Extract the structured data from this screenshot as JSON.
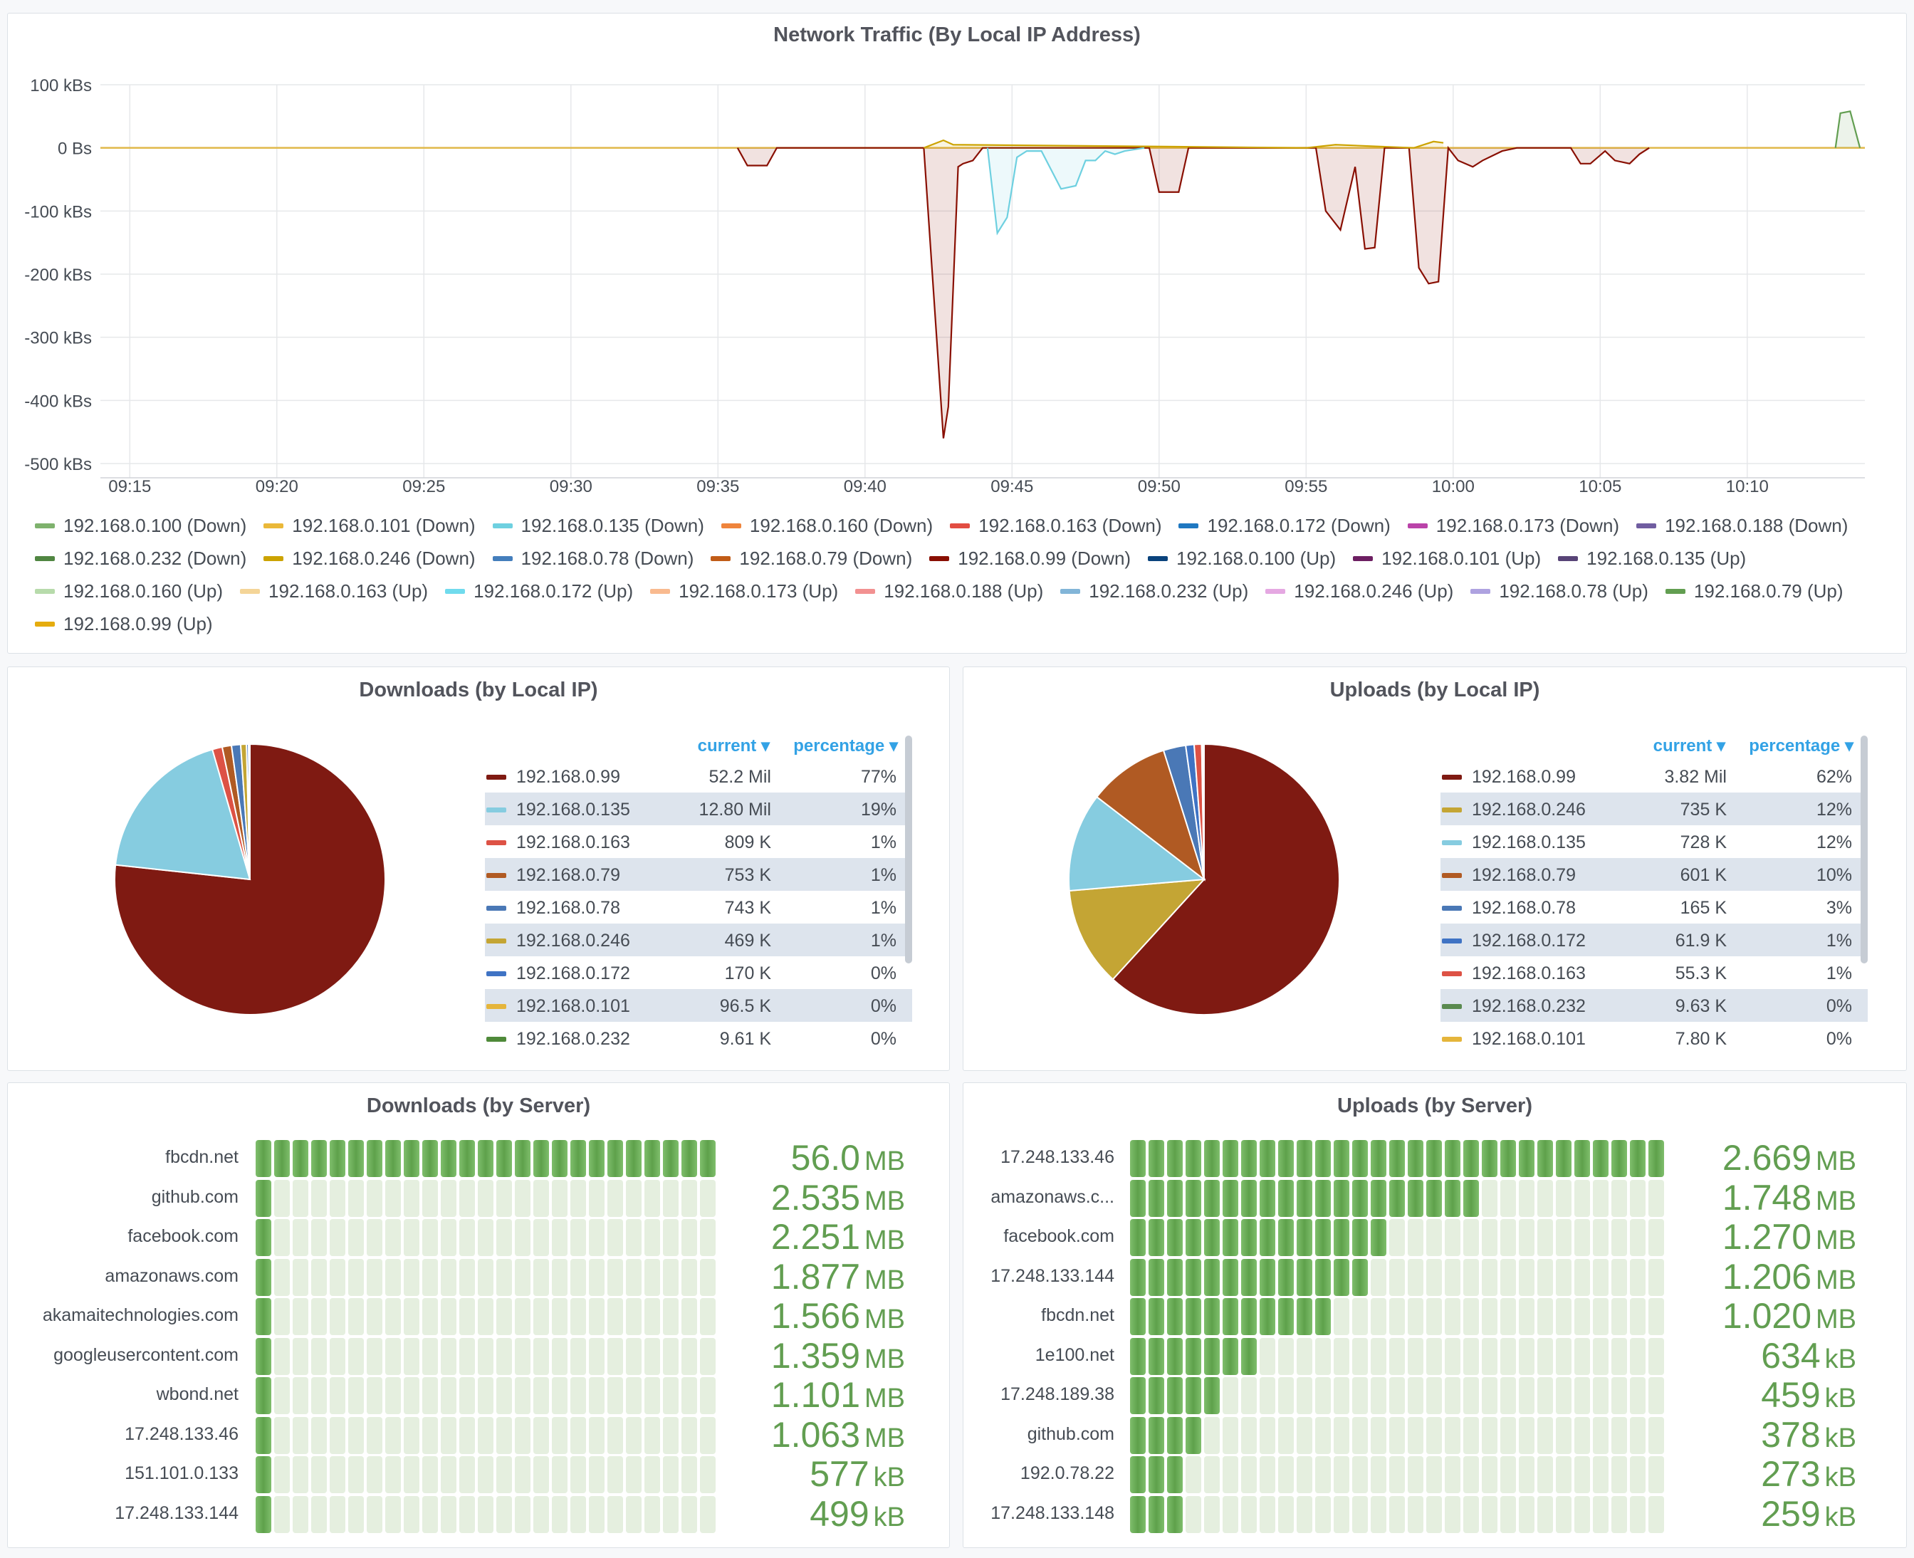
{
  "traffic": {
    "title": "Network Traffic (By Local IP Address)",
    "y_ticks": [
      "100 kBs",
      "0 Bs",
      "-100 kBs",
      "-200 kBs",
      "-300 kBs",
      "-400 kBs",
      "-500 kBs"
    ],
    "x_ticks": [
      "09:15",
      "09:20",
      "09:25",
      "09:30",
      "09:35",
      "09:40",
      "09:45",
      "09:50",
      "09:55",
      "10:00",
      "10:05",
      "10:10"
    ],
    "legend": [
      {
        "label": "192.168.0.100 (Down)",
        "color": "#7eb26d"
      },
      {
        "label": "192.168.0.101 (Down)",
        "color": "#eab839"
      },
      {
        "label": "192.168.0.135 (Down)",
        "color": "#6ed0e0"
      },
      {
        "label": "192.168.0.160 (Down)",
        "color": "#ef843c"
      },
      {
        "label": "192.168.0.163 (Down)",
        "color": "#e24d42"
      },
      {
        "label": "192.168.0.172 (Down)",
        "color": "#1f78c1"
      },
      {
        "label": "192.168.0.173 (Down)",
        "color": "#ba43a9"
      },
      {
        "label": "192.168.0.188 (Down)",
        "color": "#705da0"
      },
      {
        "label": "192.168.0.232 (Down)",
        "color": "#508642"
      },
      {
        "label": "192.168.0.246 (Down)",
        "color": "#cca300"
      },
      {
        "label": "192.168.0.78 (Down)",
        "color": "#447ebc"
      },
      {
        "label": "192.168.0.79 (Down)",
        "color": "#c15c17"
      },
      {
        "label": "192.168.0.99 (Down)",
        "color": "#890f02"
      },
      {
        "label": "192.168.0.100 (Up)",
        "color": "#0a437c"
      },
      {
        "label": "192.168.0.101 (Up)",
        "color": "#6d1f62"
      },
      {
        "label": "192.168.0.135 (Up)",
        "color": "#584477"
      },
      {
        "label": "192.168.0.160 (Up)",
        "color": "#b7dbab"
      },
      {
        "label": "192.168.0.163 (Up)",
        "color": "#f4d598"
      },
      {
        "label": "192.168.0.172 (Up)",
        "color": "#70dbed"
      },
      {
        "label": "192.168.0.173 (Up)",
        "color": "#f9ba8f"
      },
      {
        "label": "192.168.0.188 (Up)",
        "color": "#f29191"
      },
      {
        "label": "192.168.0.232 (Up)",
        "color": "#82b5d8"
      },
      {
        "label": "192.168.0.246 (Up)",
        "color": "#e5a8e2"
      },
      {
        "label": "192.168.0.78 (Up)",
        "color": "#aea2e0"
      },
      {
        "label": "192.168.0.79 (Up)",
        "color": "#629e51"
      },
      {
        "label": "192.168.0.99 (Up)",
        "color": "#e5ac0e"
      }
    ]
  },
  "chart_data": [
    {
      "type": "area",
      "title": "Network Traffic (By Local IP Address)",
      "y_unit": "kBs",
      "ylim": [
        -500,
        100
      ],
      "x_range": [
        "09:14",
        "10:14"
      ],
      "grid": true,
      "legend_position": "bottom",
      "series": [
        {
          "name": "192.168.0.99 (Down)",
          "color": "#890f02",
          "x": [
            "09:35:40",
            "09:36:00",
            "09:36:40",
            "09:37:00",
            "09:42:00",
            "09:42:40",
            "09:42:50",
            "09:43:10",
            "09:43:20",
            "09:43:40",
            "09:44:00",
            "09:49:40",
            "09:50:00",
            "09:50:40",
            "09:51:00",
            "09:55:20",
            "09:55:40",
            "09:56:10",
            "09:56:40",
            "09:57:00",
            "09:57:20",
            "09:57:40",
            "09:58:30",
            "09:58:50",
            "09:59:10",
            "09:59:30",
            "09:59:50",
            "10:00:10",
            "10:00:40",
            "10:01:00",
            "10:01:40",
            "10:02:10",
            "10:04:00",
            "10:04:20",
            "10:04:40",
            "10:05:10",
            "10:05:30",
            "10:06:00",
            "10:06:20",
            "10:06:40"
          ],
          "values": [
            0,
            -28,
            -28,
            0,
            0,
            -460,
            -410,
            -30,
            -25,
            -20,
            0,
            0,
            -70,
            -70,
            0,
            0,
            -100,
            -130,
            -30,
            -160,
            -158,
            0,
            0,
            -190,
            -215,
            -212,
            0,
            -20,
            -30,
            -20,
            -5,
            0,
            0,
            -25,
            -25,
            -5,
            -20,
            -25,
            -10,
            0
          ]
        },
        {
          "name": "192.168.0.135 (Down)",
          "color": "#6ed0e0",
          "x": [
            "09:44:10",
            "09:44:30",
            "09:44:50",
            "09:45:10",
            "09:45:30",
            "09:46:00",
            "09:46:40",
            "09:47:10",
            "09:47:30",
            "09:47:50",
            "09:48:10",
            "09:48:30",
            "09:48:50",
            "09:49:30"
          ],
          "values": [
            0,
            -135,
            -110,
            -15,
            -5,
            -5,
            -65,
            -60,
            -20,
            -20,
            -5,
            -10,
            -5,
            0
          ]
        },
        {
          "name": "192.168.0.79 (Up)",
          "color": "#629e51",
          "x": [
            "10:13:00",
            "10:13:10",
            "10:13:30",
            "10:13:50"
          ],
          "values": [
            0,
            55,
            58,
            0
          ]
        },
        {
          "name": "192.168.0.246 (Down)",
          "color": "#cca300",
          "x": [
            "09:42:00",
            "09:42:40",
            "09:43:00",
            "09:55:00",
            "09:56:00",
            "09:58:40",
            "09:59:20",
            "09:59:40"
          ],
          "values": [
            0,
            12,
            5,
            0,
            5,
            0,
            10,
            8
          ]
        }
      ]
    },
    {
      "type": "pie",
      "title": "Downloads (by Local IP)",
      "categories": [
        "192.168.0.99",
        "192.168.0.135",
        "192.168.0.163",
        "192.168.0.79",
        "192.168.0.78",
        "192.168.0.246",
        "192.168.0.172",
        "192.168.0.101",
        "192.168.0.232"
      ],
      "values": [
        52200000,
        12800000,
        809000,
        753000,
        743000,
        469000,
        170000,
        96500,
        9610
      ],
      "colors": [
        "#7f1a12",
        "#86cce0",
        "#dd5245",
        "#b05a23",
        "#4a78b6",
        "#c4a534",
        "#3f73c4",
        "#e5b53b",
        "#4f8a3a"
      ]
    },
    {
      "type": "pie",
      "title": "Uploads (by Local IP)",
      "categories": [
        "192.168.0.99",
        "192.168.0.246",
        "192.168.0.135",
        "192.168.0.79",
        "192.168.0.78",
        "192.168.0.172",
        "192.168.0.163",
        "192.168.0.232",
        "192.168.0.101"
      ],
      "values": [
        3820000,
        735000,
        728000,
        601000,
        165000,
        61900,
        55300,
        9630,
        7800
      ],
      "colors": [
        "#7f1a12",
        "#c4a534",
        "#86cce0",
        "#b05a23",
        "#4a78b6",
        "#3f73c4",
        "#dd5245",
        "#5a8a4f",
        "#e5b53b"
      ]
    },
    {
      "type": "bar",
      "title": "Downloads (by Server)",
      "categories": [
        "fbcdn.net",
        "github.com",
        "facebook.com",
        "amazonaws.com",
        "akamaitechnologies.com",
        "googleusercontent.com",
        "wbond.net",
        "17.248.133.46",
        "151.101.0.133",
        "17.248.133.144"
      ],
      "values": [
        56.0,
        2.535,
        2.251,
        1.877,
        1.566,
        1.359,
        1.101,
        1.063,
        0.577,
        0.499
      ],
      "ylabel": "MB"
    },
    {
      "type": "bar",
      "title": "Uploads (by Server)",
      "categories": [
        "17.248.133.46",
        "amazonaws.com",
        "facebook.com",
        "17.248.133.144",
        "fbcdn.net",
        "1e100.net",
        "17.248.189.38",
        "github.com",
        "192.0.78.22",
        "17.248.133.148"
      ],
      "values": [
        2.669,
        1.748,
        1.27,
        1.206,
        1.02,
        0.634,
        0.459,
        0.378,
        0.273,
        0.259
      ],
      "ylabel": "MB"
    }
  ],
  "downloads_ip": {
    "title": "Downloads (by Local IP)",
    "col_current": "current",
    "col_percentage": "percentage",
    "rows": [
      {
        "ip": "192.168.0.99",
        "current": "52.2 Mil",
        "pct": "77%",
        "color": "#7f1a12"
      },
      {
        "ip": "192.168.0.135",
        "current": "12.80 Mil",
        "pct": "19%",
        "color": "#86cce0"
      },
      {
        "ip": "192.168.0.163",
        "current": "809 K",
        "pct": "1%",
        "color": "#dd5245"
      },
      {
        "ip": "192.168.0.79",
        "current": "753 K",
        "pct": "1%",
        "color": "#b05a23"
      },
      {
        "ip": "192.168.0.78",
        "current": "743 K",
        "pct": "1%",
        "color": "#4a78b6"
      },
      {
        "ip": "192.168.0.246",
        "current": "469 K",
        "pct": "1%",
        "color": "#c4a534"
      },
      {
        "ip": "192.168.0.172",
        "current": "170 K",
        "pct": "0%",
        "color": "#3f73c4"
      },
      {
        "ip": "192.168.0.101",
        "current": "96.5 K",
        "pct": "0%",
        "color": "#e5b53b"
      },
      {
        "ip": "192.168.0.232",
        "current": "9.61 K",
        "pct": "0%",
        "color": "#4f8a3a"
      }
    ]
  },
  "uploads_ip": {
    "title": "Uploads (by Local IP)",
    "col_current": "current",
    "col_percentage": "percentage",
    "rows": [
      {
        "ip": "192.168.0.99",
        "current": "3.82 Mil",
        "pct": "62%",
        "color": "#7f1a12"
      },
      {
        "ip": "192.168.0.246",
        "current": "735 K",
        "pct": "12%",
        "color": "#c4a534"
      },
      {
        "ip": "192.168.0.135",
        "current": "728 K",
        "pct": "12%",
        "color": "#86cce0"
      },
      {
        "ip": "192.168.0.79",
        "current": "601 K",
        "pct": "10%",
        "color": "#b05a23"
      },
      {
        "ip": "192.168.0.78",
        "current": "165 K",
        "pct": "3%",
        "color": "#4a78b6"
      },
      {
        "ip": "192.168.0.172",
        "current": "61.9 K",
        "pct": "1%",
        "color": "#3f73c4"
      },
      {
        "ip": "192.168.0.163",
        "current": "55.3 K",
        "pct": "1%",
        "color": "#dd5245"
      },
      {
        "ip": "192.168.0.232",
        "current": "9.63 K",
        "pct": "0%",
        "color": "#5a8a4f"
      },
      {
        "ip": "192.168.0.101",
        "current": "7.80 K",
        "pct": "0%",
        "color": "#e5b53b"
      }
    ]
  },
  "downloads_srv": {
    "title": "Downloads (by Server)",
    "cells_total": 25,
    "rows": [
      {
        "name": "fbcdn.net",
        "num": "56.0",
        "unit": "MB",
        "fill": 1.0
      },
      {
        "name": "github.com",
        "num": "2.535",
        "unit": "MB",
        "fill": 0.045
      },
      {
        "name": "facebook.com",
        "num": "2.251",
        "unit": "MB",
        "fill": 0.04
      },
      {
        "name": "amazonaws.com",
        "num": "1.877",
        "unit": "MB",
        "fill": 0.034
      },
      {
        "name": "akamaitechnologies.com",
        "num": "1.566",
        "unit": "MB",
        "fill": 0.028
      },
      {
        "name": "googleusercontent.com",
        "num": "1.359",
        "unit": "MB",
        "fill": 0.024
      },
      {
        "name": "wbond.net",
        "num": "1.101",
        "unit": "MB",
        "fill": 0.02
      },
      {
        "name": "17.248.133.46",
        "num": "1.063",
        "unit": "MB",
        "fill": 0.019
      },
      {
        "name": "151.101.0.133",
        "num": "577",
        "unit": "kB",
        "fill": 0.01
      },
      {
        "name": "17.248.133.144",
        "num": "499",
        "unit": "kB",
        "fill": 0.009
      }
    ]
  },
  "uploads_srv": {
    "title": "Uploads (by Server)",
    "cells_total": 29,
    "rows": [
      {
        "name": "17.248.133.46",
        "num": "2.669",
        "unit": "MB",
        "fill": 1.0
      },
      {
        "name": "amazonaws.c...",
        "num": "1.748",
        "unit": "MB",
        "fill": 0.655
      },
      {
        "name": "facebook.com",
        "num": "1.270",
        "unit": "MB",
        "fill": 0.476
      },
      {
        "name": "17.248.133.144",
        "num": "1.206",
        "unit": "MB",
        "fill": 0.452
      },
      {
        "name": "fbcdn.net",
        "num": "1.020",
        "unit": "MB",
        "fill": 0.382
      },
      {
        "name": "1e100.net",
        "num": "634",
        "unit": "kB",
        "fill": 0.238
      },
      {
        "name": "17.248.189.38",
        "num": "459",
        "unit": "kB",
        "fill": 0.172
      },
      {
        "name": "github.com",
        "num": "378",
        "unit": "kB",
        "fill": 0.142
      },
      {
        "name": "192.0.78.22",
        "num": "273",
        "unit": "kB",
        "fill": 0.102
      },
      {
        "name": "17.248.133.148",
        "num": "259",
        "unit": "kB",
        "fill": 0.097
      }
    ]
  }
}
